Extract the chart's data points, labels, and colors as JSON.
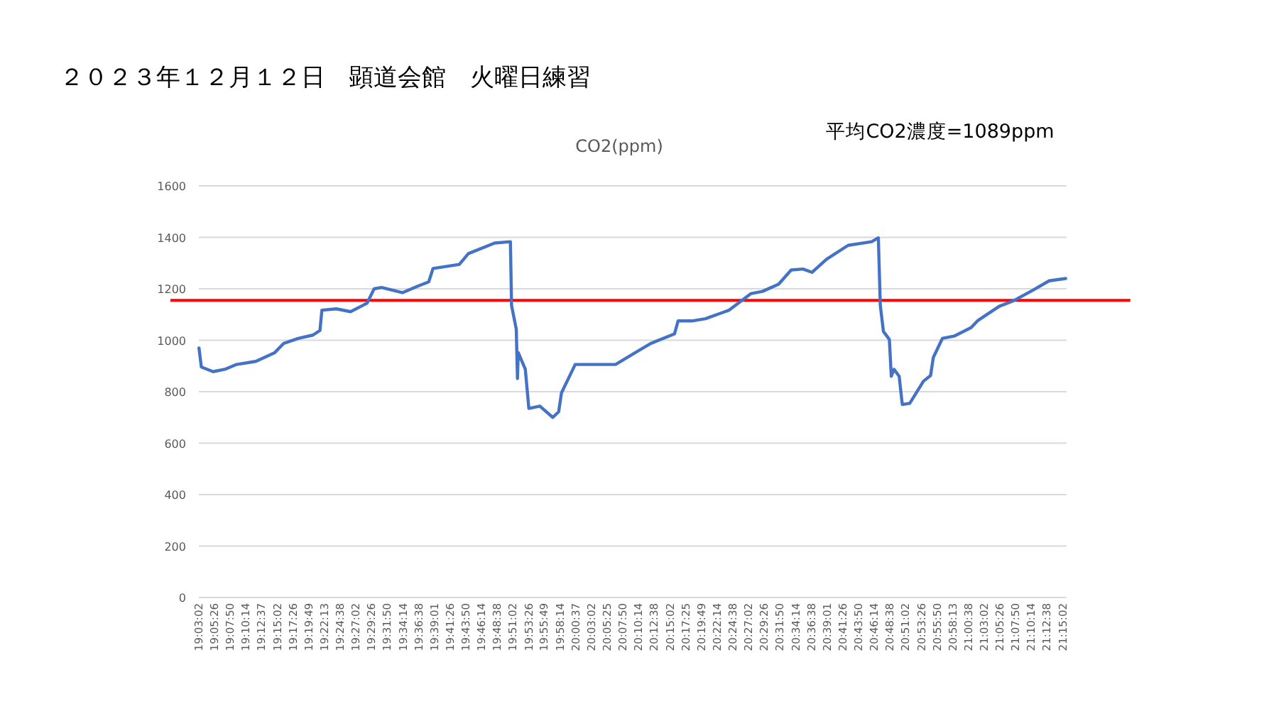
{
  "chart_data": {
    "type": "line",
    "title": "２０２３年１２月１２日　顕道会館　火曜日練習",
    "subtitle": "CO2(ppm)",
    "annotations": [
      "平均CO2濃度=1089ppm"
    ],
    "x": [
      19.051,
      19.057,
      19.087,
      19.117,
      19.147,
      19.196,
      19.244,
      19.267,
      19.304,
      19.341,
      19.359,
      19.364,
      19.401,
      19.437,
      19.479,
      19.497,
      19.516,
      19.569,
      19.606,
      19.636,
      19.647,
      19.714,
      19.737,
      19.804,
      19.844,
      19.847,
      19.859,
      19.862,
      19.864,
      19.882,
      19.891,
      19.919,
      19.952,
      19.967,
      19.974,
      20.009,
      20.064,
      20.112,
      20.172,
      20.202,
      20.262,
      20.271,
      20.306,
      20.341,
      20.401,
      20.456,
      20.486,
      20.527,
      20.559,
      20.589,
      20.612,
      20.649,
      20.704,
      20.764,
      20.781,
      20.786,
      20.794,
      20.809,
      20.814,
      20.821,
      20.834,
      20.842,
      20.861,
      20.896,
      20.914,
      20.921,
      20.944,
      20.974,
      21.017,
      21.034,
      21.089,
      21.126,
      21.174,
      21.216,
      21.258
    ],
    "series": [
      {
        "color": "#4472c4",
        "values": [
          970,
          896,
          878,
          887,
          906,
          918,
          952,
          988,
          1007,
          1020,
          1038,
          1117,
          1122,
          1111,
          1144,
          1200,
          1205,
          1185,
          1209,
          1227,
          1279,
          1295,
          1337,
          1378,
          1383,
          1135,
          1043,
          851,
          952,
          887,
          735,
          744,
          700,
          722,
          795,
          906,
          906,
          906,
          961,
          988,
          1025,
          1075,
          1075,
          1084,
          1117,
          1181,
          1190,
          1218,
          1273,
          1277,
          1264,
          1315,
          1369,
          1383,
          1398,
          1135,
          1034,
          1003,
          860,
          887,
          860,
          750,
          755,
          841,
          863,
          933,
          1007,
          1016,
          1049,
          1076,
          1132,
          1154,
          1194,
          1231,
          1240
        ]
      }
    ],
    "xlim": [
      19.0506,
      21.26
    ],
    "xticks": [
      {
        "value": 19.0506,
        "label": "19:03:02"
      },
      {
        "value": 19.0906,
        "label": "19:05:26"
      },
      {
        "value": 19.1306,
        "label": "19:07:50"
      },
      {
        "value": 19.1706,
        "label": "19:10:14"
      },
      {
        "value": 19.2103,
        "label": "19:12:37"
      },
      {
        "value": 19.2506,
        "label": "19:15:02"
      },
      {
        "value": 19.2906,
        "label": "19:17:26"
      },
      {
        "value": 19.3303,
        "label": "19:19:49"
      },
      {
        "value": 19.3703,
        "label": "19:22:13"
      },
      {
        "value": 19.4106,
        "label": "19:24:38"
      },
      {
        "value": 19.4506,
        "label": "19:27:02"
      },
      {
        "value": 19.4906,
        "label": "19:29:26"
      },
      {
        "value": 19.5306,
        "label": "19:31:50"
      },
      {
        "value": 19.5706,
        "label": "19:34:14"
      },
      {
        "value": 19.6106,
        "label": "19:36:38"
      },
      {
        "value": 19.6503,
        "label": "19:39:01"
      },
      {
        "value": 19.6906,
        "label": "19:41:26"
      },
      {
        "value": 19.7306,
        "label": "19:43:50"
      },
      {
        "value": 19.7706,
        "label": "19:46:14"
      },
      {
        "value": 19.8106,
        "label": "19:48:38"
      },
      {
        "value": 19.8506,
        "label": "19:51:02"
      },
      {
        "value": 19.8906,
        "label": "19:53:26"
      },
      {
        "value": 19.9303,
        "label": "19:55:49"
      },
      {
        "value": 19.9706,
        "label": "19:58:14"
      },
      {
        "value": 20.0103,
        "label": "20:00:37"
      },
      {
        "value": 20.0506,
        "label": "20:03:02"
      },
      {
        "value": 20.0903,
        "label": "20:05:25"
      },
      {
        "value": 20.1306,
        "label": "20:07:50"
      },
      {
        "value": 20.1706,
        "label": "20:10:14"
      },
      {
        "value": 20.2106,
        "label": "20:12:38"
      },
      {
        "value": 20.2506,
        "label": "20:15:02"
      },
      {
        "value": 20.2903,
        "label": "20:17:25"
      },
      {
        "value": 20.3303,
        "label": "20:19:49"
      },
      {
        "value": 20.3706,
        "label": "20:22:14"
      },
      {
        "value": 20.4106,
        "label": "20:24:38"
      },
      {
        "value": 20.4506,
        "label": "20:27:02"
      },
      {
        "value": 20.4906,
        "label": "20:29:26"
      },
      {
        "value": 20.5306,
        "label": "20:31:50"
      },
      {
        "value": 20.5706,
        "label": "20:34:14"
      },
      {
        "value": 20.6106,
        "label": "20:36:38"
      },
      {
        "value": 20.6503,
        "label": "20:39:01"
      },
      {
        "value": 20.6906,
        "label": "20:41:26"
      },
      {
        "value": 20.7306,
        "label": "20:43:50"
      },
      {
        "value": 20.7706,
        "label": "20:46:14"
      },
      {
        "value": 20.8106,
        "label": "20:48:38"
      },
      {
        "value": 20.8506,
        "label": "20:51:02"
      },
      {
        "value": 20.8906,
        "label": "20:53:26"
      },
      {
        "value": 20.9306,
        "label": "20:55:50"
      },
      {
        "value": 20.9703,
        "label": "20:58:13"
      },
      {
        "value": 21.0106,
        "label": "21:00:38"
      },
      {
        "value": 21.0506,
        "label": "21:03:02"
      },
      {
        "value": 21.0906,
        "label": "21:05:26"
      },
      {
        "value": 21.1306,
        "label": "21:07:50"
      },
      {
        "value": 21.1706,
        "label": "21:10:14"
      },
      {
        "value": 21.2106,
        "label": "21:12:38"
      },
      {
        "value": 21.2506,
        "label": "21:15:02"
      }
    ],
    "ylim": [
      0,
      1600
    ],
    "yticks": [
      0,
      200,
      400,
      600,
      800,
      1000,
      1200,
      1400,
      1600
    ],
    "grid": "y",
    "ref_lines": [
      {
        "axis": "y",
        "value": 1155,
        "color": "#ff0000"
      }
    ]
  }
}
